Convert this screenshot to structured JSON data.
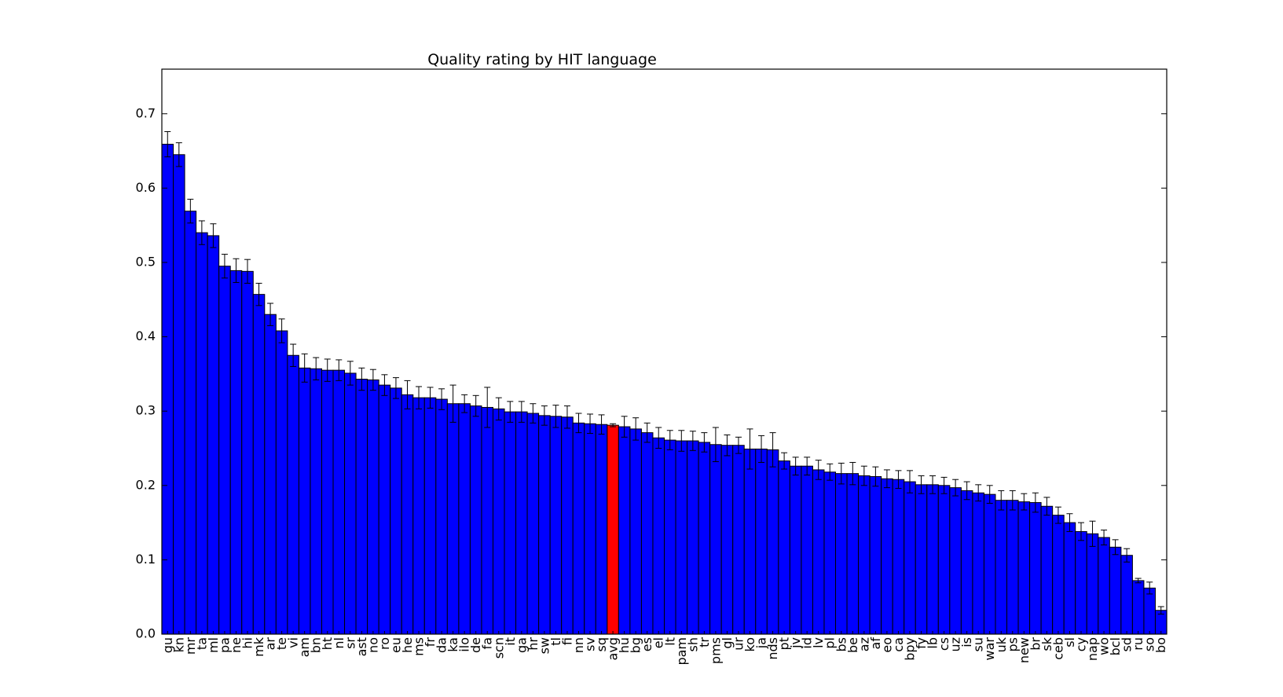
{
  "chart_data": {
    "type": "bar",
    "title": "Quality rating by HIT language",
    "xlabel": "",
    "ylabel": "",
    "ylim": [
      0,
      0.76
    ],
    "yticks": [
      "0.0",
      "0.1",
      "0.2",
      "0.3",
      "0.4",
      "0.5",
      "0.6",
      "0.7"
    ],
    "grid": false,
    "categories": [
      "gu",
      "kn",
      "mr",
      "ta",
      "ml",
      "pa",
      "ne",
      "hi",
      "mk",
      "ar",
      "te",
      "vi",
      "am",
      "bn",
      "ht",
      "nl",
      "sr",
      "ast",
      "no",
      "ro",
      "eu",
      "he",
      "ms",
      "fr",
      "da",
      "ka",
      "ilo",
      "de",
      "fa",
      "scn",
      "it",
      "ga",
      "hr",
      "sw",
      "tl",
      "fi",
      "nn",
      "sv",
      "sq",
      "avg",
      "hu",
      "bg",
      "es",
      "el",
      "lt",
      "pam",
      "sh",
      "tr",
      "pms",
      "gl",
      "ur",
      "ko",
      "ja",
      "nds",
      "pt",
      "jv",
      "id",
      "lv",
      "pl",
      "bs",
      "be",
      "az",
      "af",
      "eo",
      "ca",
      "bpy",
      "fy",
      "lb",
      "cs",
      "uz",
      "is",
      "su",
      "war",
      "uk",
      "ps",
      "new",
      "br",
      "sk",
      "ceb",
      "sl",
      "cy",
      "nap",
      "wo",
      "bcl",
      "sd",
      "ru",
      "so",
      "bo"
    ],
    "values": [
      0.659,
      0.645,
      0.569,
      0.54,
      0.536,
      0.495,
      0.489,
      0.488,
      0.457,
      0.43,
      0.408,
      0.375,
      0.358,
      0.357,
      0.355,
      0.355,
      0.351,
      0.343,
      0.342,
      0.335,
      0.331,
      0.322,
      0.318,
      0.318,
      0.316,
      0.31,
      0.31,
      0.307,
      0.305,
      0.303,
      0.299,
      0.299,
      0.297,
      0.294,
      0.293,
      0.292,
      0.284,
      0.283,
      0.282,
      0.281,
      0.279,
      0.276,
      0.271,
      0.264,
      0.261,
      0.26,
      0.26,
      0.258,
      0.255,
      0.254,
      0.254,
      0.249,
      0.249,
      0.248,
      0.233,
      0.226,
      0.226,
      0.221,
      0.218,
      0.216,
      0.216,
      0.213,
      0.212,
      0.209,
      0.208,
      0.205,
      0.201,
      0.201,
      0.2,
      0.197,
      0.193,
      0.19,
      0.188,
      0.18,
      0.18,
      0.178,
      0.177,
      0.172,
      0.16,
      0.15,
      0.138,
      0.135,
      0.13,
      0.117,
      0.106,
      0.072,
      0.062,
      0.032
    ],
    "errors": [
      0.017,
      0.016,
      0.016,
      0.016,
      0.016,
      0.016,
      0.016,
      0.016,
      0.015,
      0.015,
      0.016,
      0.015,
      0.019,
      0.015,
      0.015,
      0.014,
      0.016,
      0.015,
      0.014,
      0.014,
      0.014,
      0.019,
      0.015,
      0.014,
      0.014,
      0.025,
      0.012,
      0.014,
      0.027,
      0.015,
      0.014,
      0.014,
      0.013,
      0.013,
      0.015,
      0.015,
      0.013,
      0.013,
      0.013,
      0.002,
      0.014,
      0.015,
      0.013,
      0.014,
      0.013,
      0.014,
      0.013,
      0.013,
      0.023,
      0.014,
      0.011,
      0.027,
      0.018,
      0.023,
      0.011,
      0.012,
      0.012,
      0.013,
      0.011,
      0.014,
      0.015,
      0.013,
      0.013,
      0.012,
      0.012,
      0.015,
      0.012,
      0.012,
      0.011,
      0.011,
      0.012,
      0.011,
      0.012,
      0.013,
      0.013,
      0.011,
      0.013,
      0.012,
      0.011,
      0.012,
      0.012,
      0.017,
      0.01,
      0.01,
      0.009,
      0.003,
      0.008,
      0.005
    ],
    "highlight_category": "avg",
    "colors": {
      "bar": "#0000ff",
      "highlight": "#ff0000",
      "edge": "#000000",
      "error": "#000000"
    }
  }
}
